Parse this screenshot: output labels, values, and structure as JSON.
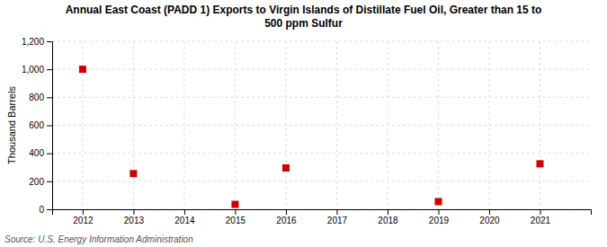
{
  "chart_data": {
    "type": "scatter",
    "title": "Annual East Coast (PADD 1) Exports to Virgin Islands of Distillate Fuel Oil, Greater than 15 to\n500 ppm Sulfur",
    "y_label": "Thousand Barrels",
    "annotation": "Source: U.S. Energy Information Administration",
    "x": [
      2012,
      2013,
      2015,
      2016,
      2019,
      2021
    ],
    "values": [
      1000,
      255,
      35,
      295,
      55,
      325
    ],
    "color": "#cc0000",
    "marker": "square",
    "xlim": [
      2011.4,
      2022.0
    ],
    "xticks": [
      2012,
      2013,
      2014,
      2015,
      2016,
      2017,
      2018,
      2019,
      2020,
      2021
    ],
    "ylim": [
      0,
      1200
    ],
    "yticks": [
      0,
      200,
      400,
      600,
      800,
      {
        "value": 1000,
        "label": "1,000"
      },
      {
        "value": 1200,
        "label": "1,200"
      }
    ],
    "grid": true
  }
}
